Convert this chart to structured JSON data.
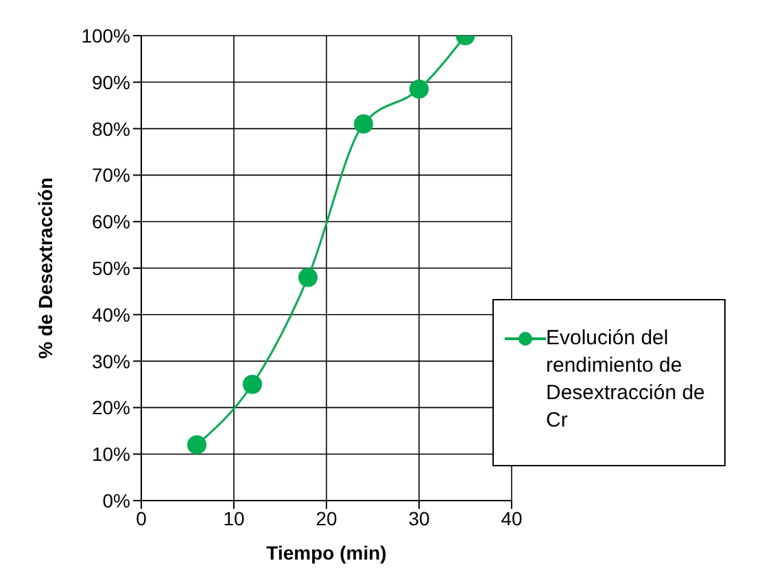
{
  "chart_data": {
    "type": "line",
    "xlabel": "Tiempo (min)",
    "ylabel": "% de Desextracción",
    "series": [
      {
        "name": "Evolución del rendimiento de Desextracción de Cr",
        "color": "#00b050",
        "x": [
          6,
          12,
          18,
          24,
          30,
          35
        ],
        "values": [
          12,
          25,
          48,
          81,
          88.5,
          100
        ]
      }
    ],
    "xlim": [
      0,
      40
    ],
    "xticks": [
      0,
      10,
      20,
      30,
      40
    ],
    "ylim": [
      0,
      100
    ],
    "yticks": [
      {
        "value": 0,
        "label": "0%"
      },
      {
        "value": 10,
        "label": "10%"
      },
      {
        "value": 20,
        "label": "20%"
      },
      {
        "value": 30,
        "label": "30%"
      },
      {
        "value": 40,
        "label": "40%"
      },
      {
        "value": 50,
        "label": "50%"
      },
      {
        "value": 60,
        "label": "60%"
      },
      {
        "value": 70,
        "label": "70%"
      },
      {
        "value": 80,
        "label": "80%"
      },
      {
        "value": 90,
        "label": "90%"
      },
      {
        "value": 100,
        "label": "100%"
      }
    ],
    "grid": true,
    "legend": "bottom right",
    "marker": "circle",
    "line_style": "solid"
  }
}
